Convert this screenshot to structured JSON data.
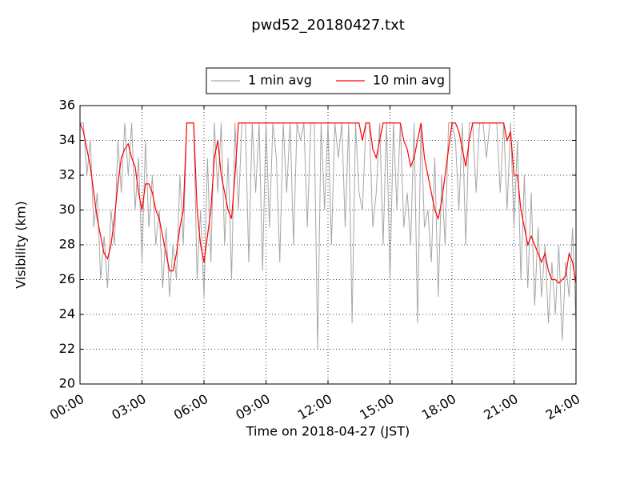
{
  "chart_data": {
    "type": "line",
    "title": "pwd52_20180427.txt",
    "x_label": "Time on 2018-04-27 (JST)",
    "y_label": "Visibility (km)",
    "x": [
      0,
      10,
      20,
      30,
      40,
      50,
      60,
      70,
      80,
      90,
      100,
      110,
      120,
      130,
      140,
      150,
      160,
      170,
      180,
      190,
      200,
      210,
      220,
      230,
      240,
      250,
      260,
      270,
      280,
      290,
      300,
      310,
      320,
      330,
      340,
      350,
      360,
      370,
      380,
      390,
      400,
      410,
      420,
      430,
      440,
      450,
      460,
      470,
      480,
      490,
      500,
      510,
      520,
      530,
      540,
      550,
      560,
      570,
      580,
      590,
      600,
      610,
      620,
      630,
      640,
      650,
      660,
      670,
      680,
      690,
      700,
      710,
      720,
      730,
      740,
      750,
      760,
      770,
      780,
      790,
      800,
      810,
      820,
      830,
      840,
      850,
      860,
      870,
      880,
      890,
      900,
      910,
      920,
      930,
      940,
      950,
      960,
      970,
      980,
      990,
      1000,
      1010,
      1020,
      1030,
      1040,
      1050,
      1060,
      1070,
      1080,
      1090,
      1100,
      1110,
      1120,
      1130,
      1140,
      1150,
      1160,
      1170,
      1180,
      1190,
      1200,
      1210,
      1220,
      1230,
      1240,
      1250,
      1260,
      1270,
      1280,
      1290,
      1300,
      1310,
      1320,
      1330,
      1340,
      1350,
      1360,
      1370,
      1380,
      1390,
      1400,
      1410,
      1420,
      1430,
      1440
    ],
    "series": [
      {
        "name": "1 min avg",
        "color": "#a6a6a6",
        "values": [
          35,
          35,
          32,
          34,
          29,
          31,
          26,
          28.5,
          25.5,
          30,
          28,
          34,
          31,
          35,
          32,
          35,
          30,
          33,
          27,
          34,
          29,
          32,
          28,
          30,
          25.5,
          29,
          25,
          28,
          26,
          32,
          28,
          35,
          35,
          35,
          26,
          30,
          25,
          33,
          27,
          35,
          31,
          35,
          28,
          33,
          26,
          35,
          30,
          35,
          35,
          27,
          35,
          31,
          35,
          26.5,
          35,
          29,
          35,
          33,
          27,
          35,
          31,
          35,
          28,
          35,
          34,
          35,
          29,
          35,
          35,
          22,
          35,
          30,
          35,
          28,
          35,
          33,
          35,
          29,
          35,
          23.5,
          35,
          31,
          30,
          35,
          35,
          29,
          31,
          35,
          28,
          35,
          26,
          35,
          30,
          35,
          29,
          31,
          28,
          35,
          23.5,
          35,
          29,
          30,
          27,
          33,
          25,
          32,
          28,
          35,
          35,
          34,
          30,
          35,
          28,
          35,
          35,
          31,
          35,
          35,
          33,
          35,
          35,
          35,
          31,
          35,
          30,
          35,
          29,
          34,
          26,
          32,
          25.5,
          31,
          24.5,
          29,
          25,
          28,
          23.5,
          27,
          24,
          28,
          22.5,
          27,
          25,
          29,
          23.5
        ]
      },
      {
        "name": "10 min avg",
        "color": "#ff0000",
        "values": [
          35,
          34.5,
          33.5,
          32.5,
          31,
          29.5,
          28.5,
          27.5,
          27.2,
          28,
          29.5,
          31.5,
          33,
          33.5,
          33.8,
          33,
          32.5,
          31,
          30,
          31.5,
          31.5,
          31,
          30,
          29.5,
          28.5,
          27.5,
          26.5,
          26.5,
          27.5,
          29,
          30,
          35,
          35,
          35,
          30,
          28,
          27,
          28.5,
          30,
          33,
          34,
          32,
          31,
          30,
          29.5,
          32,
          35,
          35,
          35,
          35,
          35,
          35,
          35,
          35,
          35,
          35,
          35,
          35,
          35,
          35,
          35,
          35,
          35,
          35,
          35,
          35,
          35,
          35,
          35,
          35,
          35,
          35,
          35,
          35,
          35,
          35,
          35,
          35,
          35,
          35,
          35,
          35,
          34,
          35,
          35,
          33.5,
          33,
          34,
          35,
          35,
          35,
          35,
          35,
          35,
          34,
          33.5,
          32.5,
          33,
          34,
          35,
          33,
          32,
          31,
          30,
          29.5,
          30.5,
          32,
          33.5,
          35,
          35,
          34.5,
          33.5,
          32.5,
          34,
          35,
          35,
          35,
          35,
          35,
          35,
          35,
          35,
          35,
          35,
          34,
          34.5,
          32,
          32,
          30,
          29,
          28,
          28.5,
          28,
          27.5,
          27,
          27.5,
          26.5,
          26,
          26,
          25.8,
          26,
          26.2,
          27.5,
          27,
          25.8
        ]
      }
    ],
    "xlim": [
      0,
      1440
    ],
    "xticks": [
      {
        "value": 0,
        "label": "00:00"
      },
      {
        "value": 180,
        "label": "03:00"
      },
      {
        "value": 360,
        "label": "06:00"
      },
      {
        "value": 540,
        "label": "09:00"
      },
      {
        "value": 720,
        "label": "12:00"
      },
      {
        "value": 900,
        "label": "15:00"
      },
      {
        "value": 1080,
        "label": "18:00"
      },
      {
        "value": 1260,
        "label": "21:00"
      },
      {
        "value": 1440,
        "label": "24:00"
      }
    ],
    "ylim": [
      20,
      36
    ],
    "yticks": [
      20,
      22,
      24,
      26,
      28,
      30,
      32,
      34,
      36
    ],
    "grid": true,
    "legend": "upper center"
  }
}
